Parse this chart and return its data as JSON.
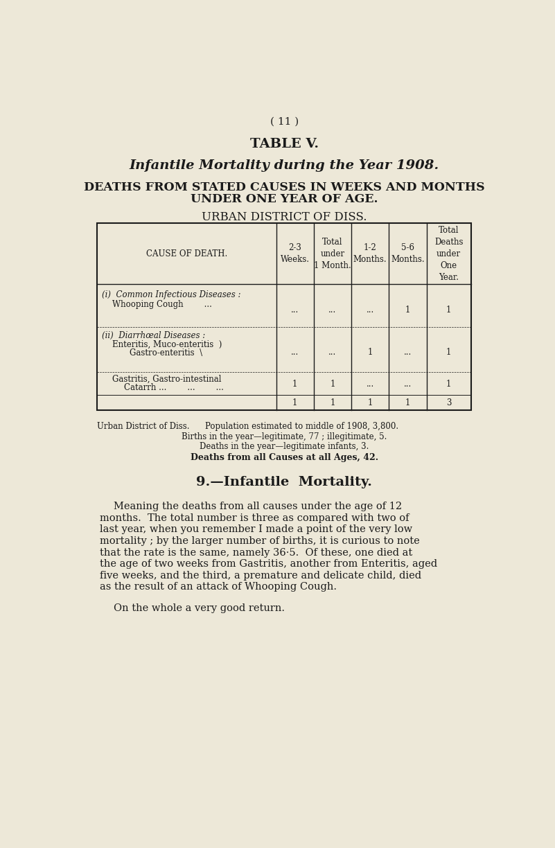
{
  "bg_color": "#EDE8D8",
  "page_number": "( 11 )",
  "table_title": "TABLE V.",
  "subtitle1": "Infantile Mortality during the Year 1908.",
  "subtitle2": "DEATHS FROM STATED CAUSES IN WEEKS AND MONTHS",
  "subtitle3": "UNDER ONE YEAR OF AGE.",
  "subtitle4": "URBAN DISTRICT OF DISS.",
  "col_headers": [
    "CAUSE OF DEATH.",
    "2-3\nWeeks.",
    "Total\nunder\n1 Month.",
    "1-2\nMonths.",
    "5-6\nMonths.",
    "Total\nDeaths\nunder\nOne\nYear."
  ],
  "row1_label_i": "(i)  Common Infectious Diseases :",
  "row1_label_ii": "Whooping Cough        ...",
  "row1_data": [
    "...",
    "...",
    "...",
    "1",
    "1"
  ],
  "row2_label_i": "(ii)  Diarrhœal Diseases :",
  "row2_label_ii": "Enteritis, Muco-enteritis  )",
  "row2_label_iii": "Gastro-enteritis  \\",
  "row2_data": [
    "...",
    "...",
    "1",
    "...",
    "1"
  ],
  "row3_label_i": "Gastritis, Gastro-intestinal",
  "row3_label_ii": "Catarrh ...        ...        ...",
  "row3_data": [
    "1",
    "1",
    "...",
    "...",
    "1"
  ],
  "total_data": [
    "1",
    "1",
    "1",
    "1",
    "3"
  ],
  "footer1": "Urban District of Diss.      Population estimated to middle of 1908, 3,800.",
  "footer2": "Births in the year—legitimate, 77 ; illegitimate, 5.",
  "footer3": "Deaths in the year—legitimate infants, 3.",
  "footer4_normal": "Deaths from ",
  "footer4_bold": "all Causes at all Ages, 42.",
  "section_title": "9.—Infantile  Mortality.",
  "body_text": [
    "Meaning the deaths from all causes under the age of 12",
    "months.  The total number is three as compared with two of",
    "last year, when you remember I made a point of the very low",
    "mortality ; by the larger number of births, it is curious to note",
    "that the rate is the same, namely 36·5.  Of these, one died at",
    "the age of two weeks from Gastritis, another from Enteritis, aged",
    "five weeks, and the third, a premature and delicate child, died",
    "as the result of an attack of Whooping Cough."
  ],
  "closing_text": "On the whole a very good return."
}
